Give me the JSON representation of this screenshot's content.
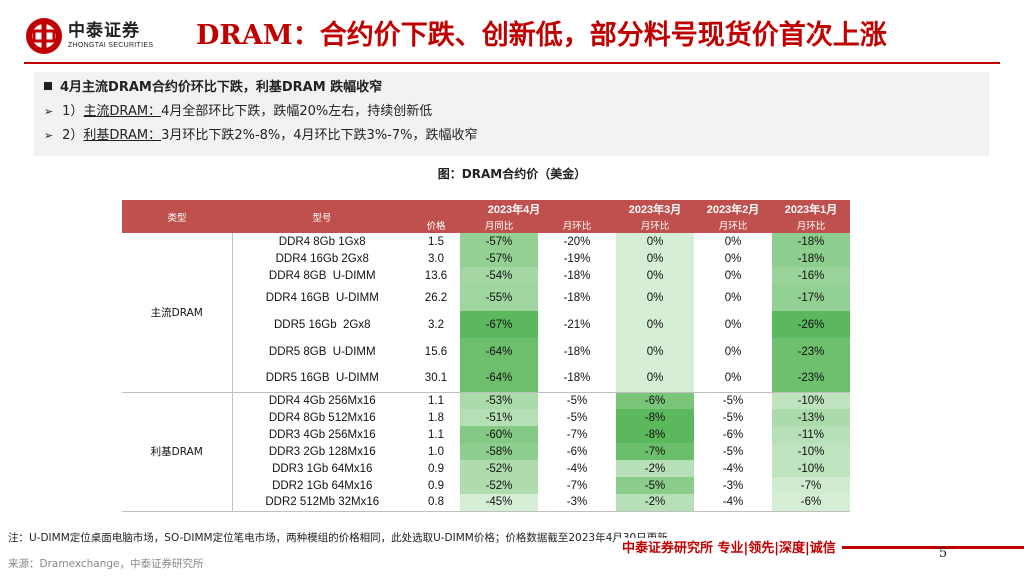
{
  "header": {
    "logo_cn": "中泰证券",
    "logo_en": "ZHONGTAI SECURITIES",
    "title": "DRAM：合约价下跌、创新低，部分料号现货价首次上涨"
  },
  "bullets": {
    "main": "4月主流DRAM合约价环比下跌，利基DRAM 跌幅收窄",
    "sub1_prefix": "1）",
    "sub1_label": "主流DRAM：",
    "sub1_text": "4月全部环比下跌，跌幅20%左右，持续创新低",
    "sub2_prefix": "2）",
    "sub2_label": "利基DRAM：",
    "sub2_text": "3月环比下跌2%-8%，4月环比下跌3%-7%，跌幅收窄"
  },
  "caption": "图：DRAM合约价（美金）",
  "table": {
    "headers": {
      "type": "类型",
      "model": "型号",
      "apr": "2023年4月",
      "mar": "2023年3月",
      "feb": "2023年2月",
      "jan": "2023年1月",
      "price": "价格",
      "yoy": "月同比",
      "mom": "月环比"
    },
    "categories": {
      "mainstream": "主流DRAM",
      "niche": "利基DRAM"
    },
    "rows": [
      {
        "model": "DDR4 8Gb 1Gx8",
        "price": "1.5",
        "yoy": "-57%",
        "apr_mom": "-20%",
        "mar": "0%",
        "feb": "0%",
        "jan": "-18%"
      },
      {
        "model": "DDR4 16Gb 2Gx8",
        "price": "3.0",
        "yoy": "-57%",
        "apr_mom": "-19%",
        "mar": "0%",
        "feb": "0%",
        "jan": "-18%"
      },
      {
        "model": "DDR4 8GB  U-DIMM",
        "price": "13.6",
        "yoy": "-54%",
        "apr_mom": "-18%",
        "mar": "0%",
        "feb": "0%",
        "jan": "-16%"
      },
      {
        "model": "DDR4 16GB  U-DIMM",
        "price": "26.2",
        "yoy": "-55%",
        "apr_mom": "-18%",
        "mar": "0%",
        "feb": "0%",
        "jan": "-17%"
      },
      {
        "model": "DDR5 16Gb  2Gx8",
        "price": "3.2",
        "yoy": "-67%",
        "apr_mom": "-21%",
        "mar": "0%",
        "feb": "0%",
        "jan": "-26%"
      },
      {
        "model": "DDR5 8GB  U-DIMM",
        "price": "15.6",
        "yoy": "-64%",
        "apr_mom": "-18%",
        "mar": "0%",
        "feb": "0%",
        "jan": "-23%"
      },
      {
        "model": "DDR5 16GB  U-DIMM",
        "price": "30.1",
        "yoy": "-64%",
        "apr_mom": "-18%",
        "mar": "0%",
        "feb": "0%",
        "jan": "-23%"
      },
      {
        "model": "DDR4 4Gb 256Mx16",
        "price": "1.1",
        "yoy": "-53%",
        "apr_mom": "-5%",
        "mar": "-6%",
        "feb": "-5%",
        "jan": "-10%"
      },
      {
        "model": "DDR4 8Gb 512Mx16",
        "price": "1.8",
        "yoy": "-51%",
        "apr_mom": "-5%",
        "mar": "-8%",
        "feb": "-5%",
        "jan": "-13%"
      },
      {
        "model": "DDR3 4Gb 256Mx16",
        "price": "1.1",
        "yoy": "-60%",
        "apr_mom": "-7%",
        "mar": "-8%",
        "feb": "-6%",
        "jan": "-11%"
      },
      {
        "model": "DDR3 2Gb 128Mx16",
        "price": "1.0",
        "yoy": "-58%",
        "apr_mom": "-6%",
        "mar": "-7%",
        "feb": "-5%",
        "jan": "-10%"
      },
      {
        "model": "DDR3 1Gb 64Mx16",
        "price": "0.9",
        "yoy": "-52%",
        "apr_mom": "-4%",
        "mar": "-2%",
        "feb": "-4%",
        "jan": "-10%"
      },
      {
        "model": "DDR2 1Gb 64Mx16",
        "price": "0.9",
        "yoy": "-52%",
        "apr_mom": "-7%",
        "mar": "-5%",
        "feb": "-3%",
        "jan": "-7%"
      },
      {
        "model": "DDR2 512Mb 32Mx16",
        "price": "0.8",
        "yoy": "-45%",
        "apr_mom": "-3%",
        "mar": "-2%",
        "feb": "-4%",
        "jan": "-6%"
      }
    ],
    "colors": {
      "header_bg": "#c0504d",
      "heat_light": "#ffffff",
      "heat_dark": "#5cb85c"
    }
  },
  "footer": {
    "note": "注：U-DIMM定位桌面电脑市场，SO-DIMM定位笔电市场，两种模组的价格相同，此处选取U-DIMM价格；价格数据截至2023年4月30日更新",
    "source": "来源：Dramexchange，中泰证券研究所",
    "slogan": "中泰证券研究所 专业|领先|深度|诚信",
    "page": "5"
  }
}
